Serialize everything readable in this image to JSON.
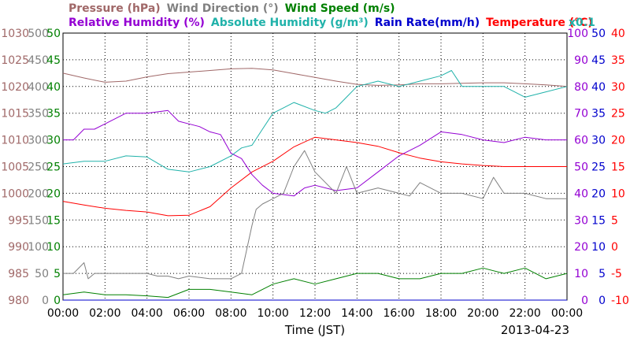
{
  "chart_data": {
    "type": "line",
    "date": "2013-04-23",
    "xlabel": "Time (JST)",
    "x_ticks": [
      "00:00",
      "02:00",
      "04:00",
      "06:00",
      "08:00",
      "10:00",
      "12:00",
      "14:00",
      "16:00",
      "18:00",
      "20:00",
      "22:00",
      "00:00"
    ],
    "legend_row1": [
      {
        "name": "Pressure (hPa)",
        "color": "#a06868"
      },
      {
        "name": "Wind Direction (°)",
        "color": "#808080"
      },
      {
        "name": "Wind Speed (m/s)",
        "color": "#008000"
      }
    ],
    "legend_row2": [
      {
        "name": "Relative Humidity (%)",
        "color": "#9400d3"
      },
      {
        "name": "Absolute Humidity (g/m³)",
        "color": "#20b2aa"
      },
      {
        "name": "Rain Rate(mm/h)",
        "color": "#0000cd"
      },
      {
        "name": "Temperature (°C)",
        "color": "#ff0000"
      }
    ],
    "scale_note": "x0.1",
    "axes": {
      "pressure": {
        "ticks": [
          "1030",
          "1025",
          "1020",
          "1015",
          "1010",
          "1005",
          "1000",
          "995",
          "990",
          "985",
          "980"
        ],
        "ylim": [
          980,
          1030
        ],
        "color": "#a06868"
      },
      "wind_direction": {
        "ticks": [
          "500",
          "450",
          "400",
          "350",
          "300",
          "250",
          "200",
          "150",
          "100",
          "50",
          "0"
        ],
        "ylim": [
          0,
          500
        ],
        "color": "#808080"
      },
      "wind_speed": {
        "ticks": [
          "50",
          "45",
          "40",
          "35",
          "30",
          "25",
          "20",
          "15",
          "10",
          "5",
          "0"
        ],
        "ylim": [
          0,
          50
        ],
        "color": "#008000"
      },
      "relative_humidity": {
        "ticks": [
          "100",
          "90",
          "80",
          "70",
          "60",
          "50",
          "40",
          "30",
          "20",
          "10",
          "0"
        ],
        "ylim": [
          0,
          100
        ],
        "color": "#9400d3"
      },
      "rain_rate": {
        "ticks": [
          "50",
          "45",
          "40",
          "35",
          "30",
          "25",
          "20",
          "15",
          "10",
          "5",
          "0"
        ],
        "ylim": [
          0,
          50
        ],
        "color": "#0000cd"
      },
      "temperature": {
        "ticks": [
          "40",
          "35",
          "30",
          "25",
          "20",
          "15",
          "10",
          "5",
          "0",
          "-5",
          "-10"
        ],
        "ylim": [
          -10,
          40
        ],
        "color": "#ff0000"
      }
    },
    "series": [
      {
        "name": "Pressure (hPa)",
        "unit": "hPa",
        "color": "#a06868",
        "axis": "pressure",
        "x": [
          0,
          1,
          2,
          3,
          4,
          5,
          6,
          7,
          8,
          9,
          10,
          11,
          12,
          13,
          14,
          15,
          16,
          17,
          18,
          19,
          20,
          21,
          22,
          23,
          24
        ],
        "values": [
          1022.5,
          1021.6,
          1020.8,
          1021.0,
          1021.8,
          1022.4,
          1022.7,
          1023.0,
          1023.3,
          1023.4,
          1023.1,
          1022.4,
          1021.7,
          1021.0,
          1020.4,
          1020.2,
          1020.3,
          1020.5,
          1020.5,
          1020.6,
          1020.7,
          1020.7,
          1020.5,
          1020.3,
          1020.0
        ]
      },
      {
        "name": "Temperature (°C)",
        "unit": "°C",
        "color": "#ff0000",
        "axis": "temperature",
        "x": [
          0,
          1,
          2,
          3,
          4,
          5,
          6,
          7,
          8,
          9,
          10,
          11,
          12,
          13,
          14,
          15,
          16,
          17,
          18,
          19,
          20,
          21,
          22,
          23,
          24
        ],
        "values": [
          8.5,
          7.8,
          7.2,
          6.8,
          6.5,
          5.8,
          5.9,
          7.5,
          11.0,
          14.0,
          16.0,
          18.7,
          20.5,
          20.0,
          19.5,
          18.8,
          17.6,
          16.6,
          15.9,
          15.5,
          15.2,
          15.0,
          15.0,
          15.0,
          15.0
        ]
      },
      {
        "name": "Relative Humidity (%)",
        "unit": "%",
        "color": "#9400d3",
        "axis": "relative_humidity",
        "x": [
          0,
          0.5,
          1,
          1.5,
          2,
          3,
          4,
          5,
          5.5,
          6,
          6.5,
          7,
          7.5,
          8,
          8.5,
          9,
          9.5,
          10,
          11,
          11.5,
          12,
          13,
          14,
          15,
          16,
          17,
          18,
          19,
          20,
          21,
          22,
          23,
          24
        ],
        "values": [
          60,
          60,
          64,
          64,
          66,
          70,
          70,
          71,
          67,
          66,
          65,
          63,
          62,
          55,
          53,
          47,
          43,
          40,
          39,
          42,
          43,
          41,
          42,
          48,
          54,
          58,
          63,
          62,
          60,
          59,
          61,
          60,
          60
        ]
      },
      {
        "name": "Absolute Humidity (g/m³)",
        "unit": "g/m³",
        "color": "#20b2aa",
        "axis": "wind_speed",
        "scale": "x0.1",
        "x": [
          0,
          1,
          2,
          3,
          4,
          5,
          6,
          7,
          8,
          8.5,
          9,
          9.5,
          10,
          10.5,
          11,
          12,
          12.5,
          13,
          13.5,
          14,
          15,
          16,
          17,
          18,
          18.5,
          19,
          20,
          21,
          21.5,
          22,
          23,
          24
        ],
        "values": [
          25.5,
          26,
          26,
          27,
          26.8,
          24.5,
          24,
          25,
          27,
          28.5,
          29,
          32,
          35,
          36,
          37,
          35.5,
          35,
          36,
          38,
          40,
          41,
          40,
          41,
          42,
          43,
          40,
          40,
          40,
          39,
          38,
          39,
          40
        ]
      },
      {
        "name": "Wind Direction (°)",
        "unit": "°",
        "color": "#808080",
        "axis": "wind_direction",
        "x": [
          0,
          0.5,
          1,
          1.2,
          1.5,
          2,
          3,
          4,
          4.5,
          5,
          5.5,
          6,
          7,
          8,
          8.5,
          9,
          9.2,
          9.5,
          10,
          10.5,
          11,
          11.5,
          12,
          12.5,
          13,
          13.5,
          14,
          15,
          16,
          16.5,
          17,
          18,
          19,
          20,
          20.5,
          21,
          22,
          23,
          24
        ],
        "values": [
          50,
          50,
          70,
          40,
          50,
          50,
          50,
          50,
          45,
          45,
          40,
          45,
          40,
          40,
          50,
          140,
          170,
          180,
          190,
          200,
          250,
          280,
          240,
          220,
          200,
          250,
          200,
          210,
          200,
          195,
          220,
          200,
          200,
          190,
          230,
          200,
          200,
          190,
          190
        ]
      },
      {
        "name": "Wind Speed (m/s)",
        "unit": "m/s",
        "color": "#008000",
        "axis": "wind_speed",
        "x": [
          0,
          1,
          2,
          3,
          4,
          5,
          6,
          7,
          8,
          9,
          10,
          11,
          12,
          13,
          14,
          15,
          16,
          17,
          18,
          19,
          20,
          21,
          22,
          23,
          24
        ],
        "values": [
          1,
          1.5,
          1,
          1,
          0.8,
          0.5,
          2,
          2,
          1.5,
          1,
          3,
          4,
          3,
          4,
          5,
          5,
          4,
          4,
          5,
          5,
          6,
          5,
          6,
          4,
          5
        ]
      },
      {
        "name": "Rain Rate(mm/h)",
        "unit": "mm/h",
        "color": "#0000cd",
        "axis": "rain_rate",
        "x": [
          0,
          24
        ],
        "values": [
          0,
          0
        ]
      }
    ]
  }
}
